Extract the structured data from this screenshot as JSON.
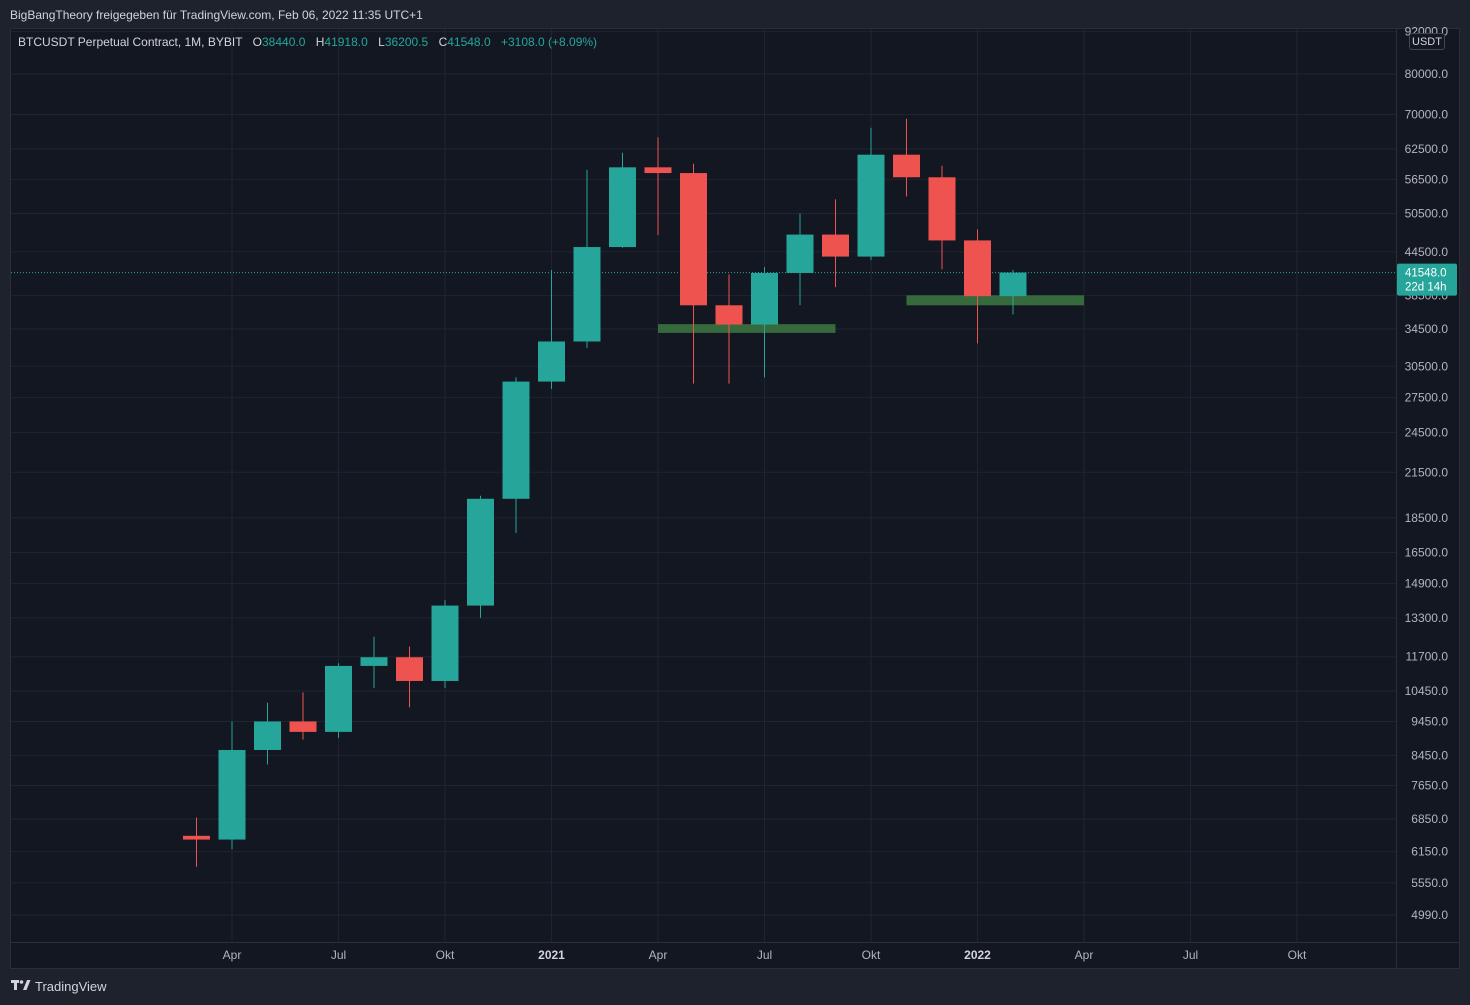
{
  "header": {
    "share_text": "BigBangTheory freigegeben für TradingView.com, Feb 06, 2022 11:35 UTC+1"
  },
  "legend": {
    "symbol": "BTCUSDT Perpetual Contract, 1M, BYBIT",
    "open_label": "O",
    "open": "38440.0",
    "high_label": "H",
    "high": "41918.0",
    "low_label": "L",
    "low": "36200.5",
    "close_label": "C",
    "close": "41548.0",
    "change": "+3108.0 (+8.09%)"
  },
  "currency_button": "USDT",
  "footer": {
    "brand": "TradingView"
  },
  "colors": {
    "up": "#26a69a",
    "down": "#ef5350",
    "zone": "#36693c",
    "background": "#131722",
    "grid": "#1f2430",
    "axis_text": "#b2b5be"
  },
  "chart_data": {
    "type": "candlestick",
    "y_scale": "log",
    "ylim": [
      4700,
      92000
    ],
    "y_ticks": [
      92000.0,
      80000.0,
      70000.0,
      62500.0,
      56500.0,
      50500.0,
      44500.0,
      38500.0,
      34500.0,
      30500.0,
      27500.0,
      24500.0,
      21500.0,
      18500.0,
      16500.0,
      14900.0,
      13300.0,
      11700.0,
      10450.0,
      9450.0,
      8450.0,
      7650.0,
      6850.0,
      6150.0,
      5550.0,
      4990.0
    ],
    "x_ticks": [
      {
        "label": "Apr",
        "date": "2020-04",
        "bold": false
      },
      {
        "label": "Jul",
        "date": "2020-07",
        "bold": false
      },
      {
        "label": "Okt",
        "date": "2020-10",
        "bold": false
      },
      {
        "label": "2021",
        "date": "2021-01",
        "bold": true
      },
      {
        "label": "Apr",
        "date": "2021-04",
        "bold": false
      },
      {
        "label": "Jul",
        "date": "2021-07",
        "bold": false
      },
      {
        "label": "Okt",
        "date": "2021-10",
        "bold": false
      },
      {
        "label": "2022",
        "date": "2022-01",
        "bold": true
      },
      {
        "label": "Apr",
        "date": "2022-04",
        "bold": false
      },
      {
        "label": "Jul",
        "date": "2022-07",
        "bold": false
      },
      {
        "label": "Okt",
        "date": "2022-10",
        "bold": false
      }
    ],
    "candles": [
      {
        "date": "2020-03",
        "open": 6480,
        "high": 6880,
        "low": 5850,
        "close": 6400
      },
      {
        "date": "2020-04",
        "open": 6400,
        "high": 9450,
        "low": 6200,
        "close": 8600
      },
      {
        "date": "2020-05",
        "open": 8600,
        "high": 10050,
        "low": 8200,
        "close": 9450
      },
      {
        "date": "2020-06",
        "open": 9450,
        "high": 10400,
        "low": 8900,
        "close": 9130
      },
      {
        "date": "2020-07",
        "open": 9130,
        "high": 11450,
        "low": 8950,
        "close": 11350
      },
      {
        "date": "2020-08",
        "open": 11350,
        "high": 12500,
        "low": 10550,
        "close": 11680
      },
      {
        "date": "2020-09",
        "open": 11680,
        "high": 12100,
        "low": 9900,
        "close": 10800
      },
      {
        "date": "2020-10",
        "open": 10800,
        "high": 14100,
        "low": 10550,
        "close": 13850
      },
      {
        "date": "2020-11",
        "open": 13850,
        "high": 19900,
        "low": 13300,
        "close": 19700
      },
      {
        "date": "2020-12",
        "open": 19700,
        "high": 29400,
        "low": 17600,
        "close": 29000
      },
      {
        "date": "2021-01",
        "open": 29000,
        "high": 41900,
        "low": 28300,
        "close": 33100
      },
      {
        "date": "2021-02",
        "open": 33100,
        "high": 58300,
        "low": 32400,
        "close": 45200
      },
      {
        "date": "2021-03",
        "open": 45200,
        "high": 61700,
        "low": 45100,
        "close": 58800
      },
      {
        "date": "2021-04",
        "open": 58800,
        "high": 64900,
        "low": 47000,
        "close": 57700
      },
      {
        "date": "2021-05",
        "open": 57700,
        "high": 59500,
        "low": 28800,
        "close": 37300
      },
      {
        "date": "2021-06",
        "open": 37300,
        "high": 41300,
        "low": 28800,
        "close": 35000
      },
      {
        "date": "2021-07",
        "open": 35000,
        "high": 42300,
        "low": 29400,
        "close": 41500
      },
      {
        "date": "2021-08",
        "open": 41500,
        "high": 50500,
        "low": 37300,
        "close": 47100
      },
      {
        "date": "2021-09",
        "open": 47100,
        "high": 52900,
        "low": 39600,
        "close": 43800
      },
      {
        "date": "2021-10",
        "open": 43800,
        "high": 67000,
        "low": 43300,
        "close": 61300
      },
      {
        "date": "2021-11",
        "open": 61300,
        "high": 69000,
        "low": 53400,
        "close": 56900
      },
      {
        "date": "2021-12",
        "open": 56900,
        "high": 59100,
        "low": 42000,
        "close": 46200
      },
      {
        "date": "2022-01",
        "open": 46200,
        "high": 47900,
        "low": 32900,
        "close": 38440
      },
      {
        "date": "2022-02",
        "open": 38440,
        "high": 41918,
        "low": 36200.5,
        "close": 41548
      }
    ],
    "zones": [
      {
        "from": "2021-04",
        "to": "2021-09",
        "low": 34050,
        "high": 35050
      },
      {
        "from": "2021-11",
        "to": "2022-04",
        "low": 37300,
        "high": 38550
      }
    ],
    "last_price": {
      "value": "41548.0",
      "countdown": "22d 14h"
    }
  }
}
